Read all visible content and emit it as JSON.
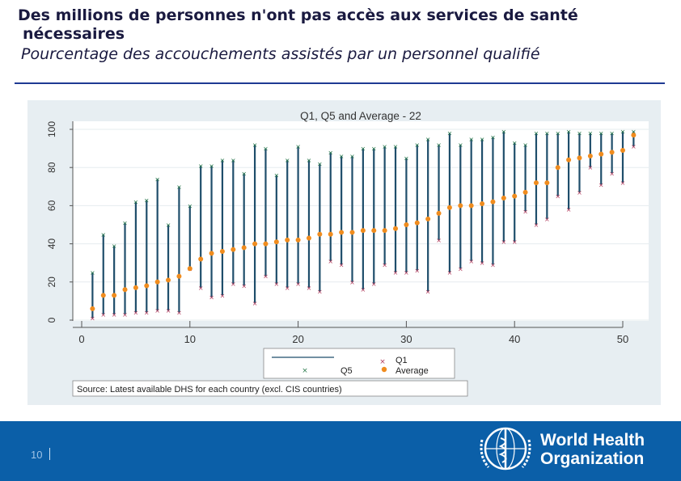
{
  "slide": {
    "title_line1": "Des millions de personnes n'ont pas accès aux services de santé",
    "title_line2": "nécessaires",
    "subtitle": "Pourcentage des accouchements assistés par un personnel qualifié",
    "page_number": "10",
    "org_name_line1": "World Health",
    "org_name_line2": "Organization",
    "colors": {
      "title": "#1a1a40",
      "rule": "#1f3a93",
      "footer": "#0b5fa8",
      "range_line": "#1f4e6b",
      "q1_marker": "#b03a5b",
      "q5_marker": "#2e7d4f",
      "average_marker": "#f08c1e",
      "plot_bg": "#ffffff",
      "frame_bg": "#e7eef2"
    }
  },
  "chart_data": {
    "type": "scatter",
    "title": "Q1, Q5 and Average - 22",
    "source": "Source: Latest available DHS for each country (excl. CIS countries)",
    "xlim": [
      0,
      51
    ],
    "ylim": [
      0,
      100
    ],
    "xticks": [
      "0",
      "10",
      "20",
      "30",
      "40",
      "50"
    ],
    "yticks": [
      "0",
      "20",
      "40",
      "60",
      "80",
      "100"
    ],
    "legend": {
      "entries": [
        "Q1",
        "Q5",
        "Average"
      ],
      "placement": "bottom"
    },
    "x": [
      1,
      2,
      3,
      4,
      5,
      6,
      7,
      8,
      9,
      10,
      11,
      12,
      13,
      14,
      15,
      16,
      17,
      18,
      19,
      20,
      21,
      22,
      23,
      24,
      25,
      26,
      27,
      28,
      29,
      30,
      31,
      32,
      33,
      34,
      35,
      36,
      37,
      38,
      39,
      40,
      41,
      42,
      43,
      44,
      45,
      46,
      47,
      48,
      49,
      50,
      51
    ],
    "series": [
      {
        "name": "Q1",
        "values": [
          1,
          3,
          3,
          3,
          4,
          4,
          5,
          5,
          4,
          27,
          17,
          12,
          13,
          19,
          18,
          9,
          23,
          19,
          17,
          19,
          17,
          15,
          31,
          29,
          20,
          16,
          19,
          29,
          25,
          25,
          26,
          15,
          42,
          25,
          27,
          31,
          30,
          29,
          41,
          41,
          57,
          50,
          53,
          65,
          58,
          67,
          80,
          71,
          77,
          72,
          91
        ]
      },
      {
        "name": "Q5",
        "values": [
          25,
          45,
          39,
          51,
          62,
          63,
          74,
          50,
          70,
          60,
          81,
          81,
          84,
          84,
          77,
          92,
          90,
          76,
          84,
          91,
          84,
          82,
          88,
          86,
          86,
          90,
          90,
          91,
          91,
          85,
          92,
          95,
          92,
          98,
          92,
          95,
          95,
          96,
          99,
          93,
          92,
          98,
          98,
          98,
          99,
          98,
          98,
          98,
          98,
          99,
          99
        ]
      },
      {
        "name": "Average",
        "values": [
          6,
          13,
          13,
          16,
          17,
          18,
          20,
          21,
          23,
          27,
          32,
          35,
          36,
          37,
          38,
          40,
          40,
          41,
          42,
          42,
          43,
          45,
          45,
          46,
          46,
          47,
          47,
          47,
          48,
          50,
          51,
          53,
          56,
          59,
          60,
          60,
          61,
          62,
          64,
          65,
          67,
          72,
          72,
          80,
          84,
          85,
          86,
          87,
          88,
          89,
          97
        ]
      }
    ]
  }
}
